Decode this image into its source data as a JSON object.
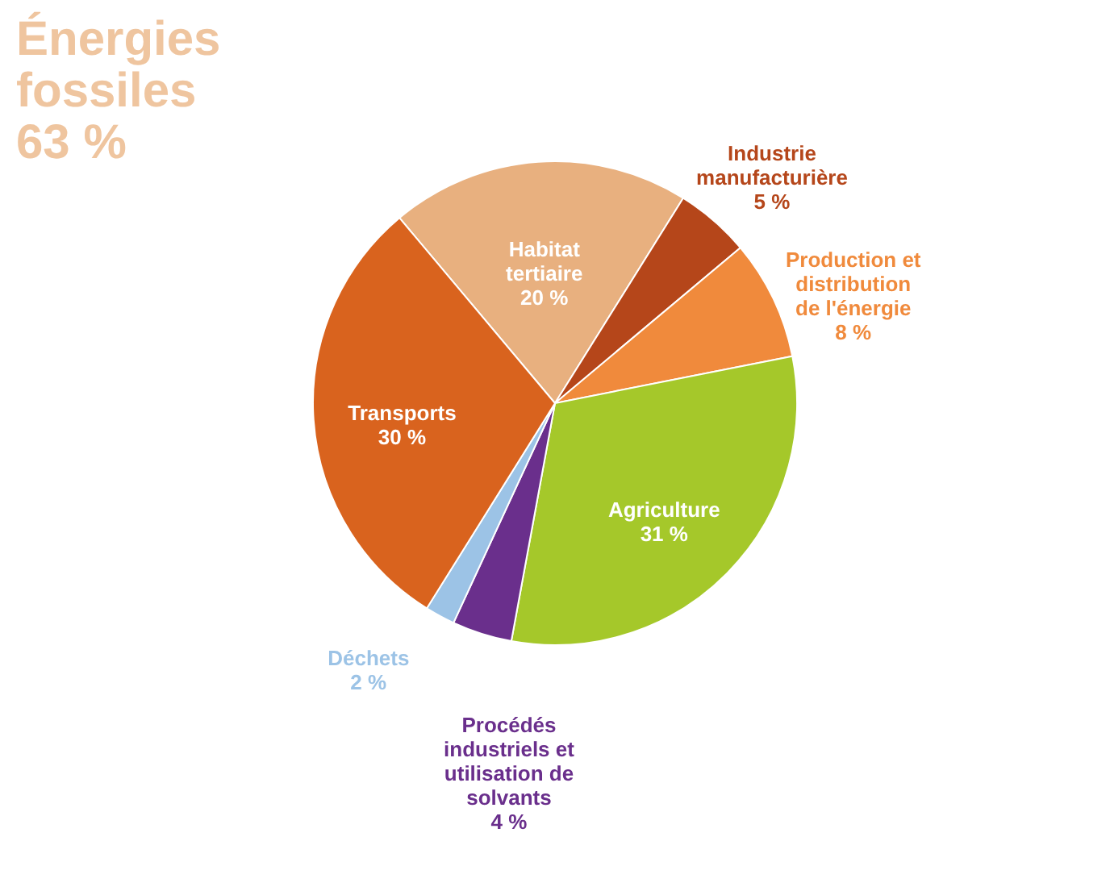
{
  "chart_data": {
    "type": "pie",
    "categories": [
      "Habitat tertiaire",
      "Industrie manufacturière",
      "Production et distribution de l'énergie",
      "Agriculture",
      "Procédés industriels et utilisation de solvants",
      "Déchets",
      "Transports"
    ],
    "values": [
      20,
      5,
      8,
      31,
      4,
      2,
      30
    ],
    "value_labels": [
      "20 %",
      "5 %",
      "8 %",
      "31 %",
      "4 %",
      "2 %",
      "30 %"
    ],
    "colors": [
      "#e8b07f",
      "#b5461a",
      "#f08a3c",
      "#a5c82a",
      "#6a2f8c",
      "#9cc3e6",
      "#d9631e"
    ],
    "annotations": [
      "Énergies fossiles 63 %"
    ]
  }
}
